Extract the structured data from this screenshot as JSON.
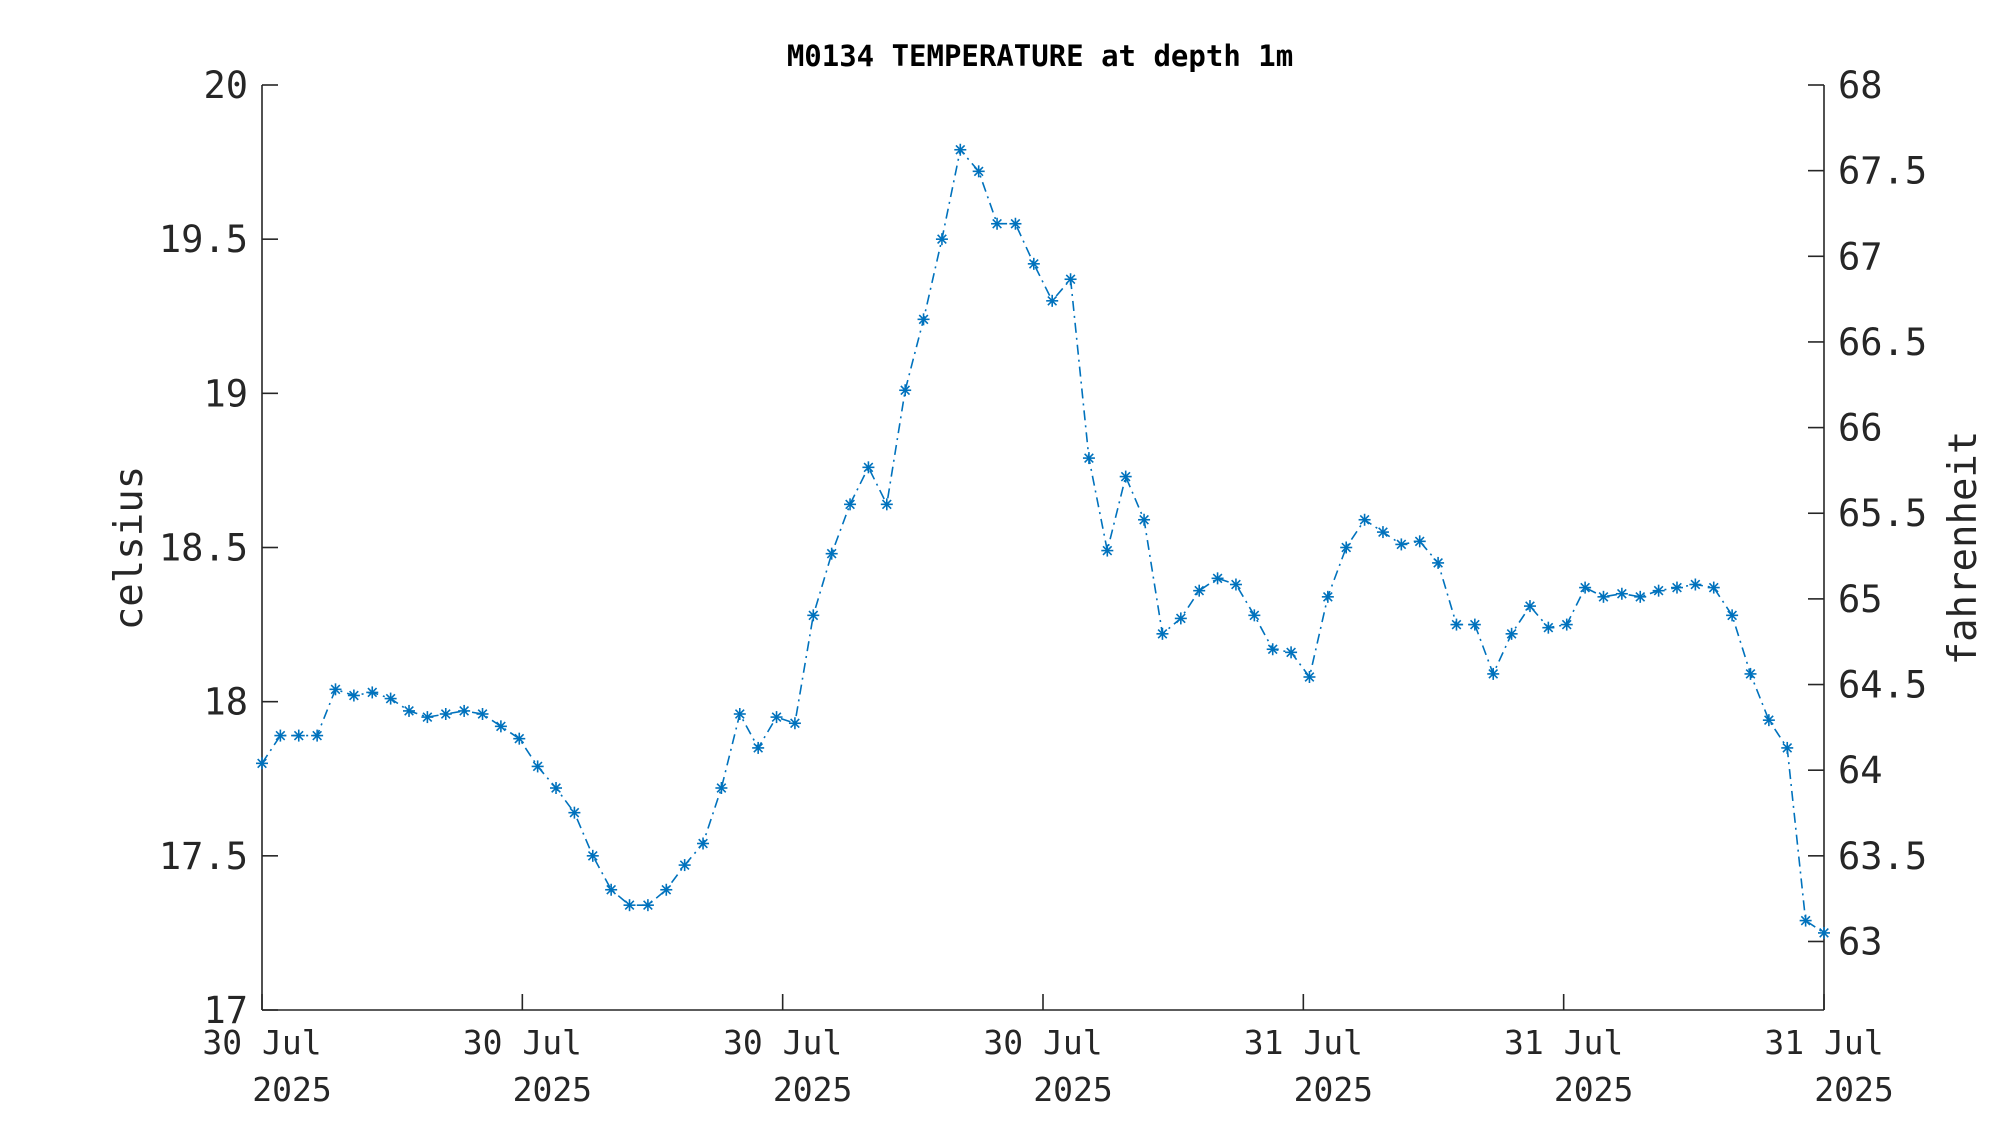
{
  "chart_data": {
    "type": "line",
    "title": "M0134 TEMPERATURE at depth 1m",
    "ylabel": "celsius",
    "y2label": "fahrenheit",
    "xlabel": "",
    "ylim": [
      17,
      20
    ],
    "y2lim": [
      62.6,
      68
    ],
    "yticks": [
      17,
      17.5,
      18,
      18.5,
      19,
      19.5,
      20
    ],
    "ytick_labels": [
      "17",
      "17.5",
      "18",
      "18.5",
      "19",
      "19.5",
      "20"
    ],
    "y2ticks": [
      63,
      63.5,
      64,
      64.5,
      65,
      65.5,
      66,
      66.5,
      67,
      67.5,
      68
    ],
    "y2tick_labels": [
      "63",
      "63.5",
      "64",
      "64.5",
      "65",
      "65.5",
      "66",
      "66.5",
      "67",
      "67.5",
      "68"
    ],
    "xtick_labels": [
      [
        "30 Jul",
        "2025"
      ],
      [
        "30 Jul",
        "2025"
      ],
      [
        "30 Jul",
        "2025"
      ],
      [
        "30 Jul",
        "2025"
      ],
      [
        "31 Jul",
        "2025"
      ],
      [
        "31 Jul",
        "2025"
      ],
      [
        "31 Jul",
        "2025"
      ]
    ],
    "grid": false,
    "line_style": "dash-dot",
    "marker": "asterisk",
    "series_color": "#0072BD",
    "series": [
      {
        "values": [
          17.8,
          17.89,
          17.89,
          17.89,
          18.04,
          18.02,
          18.03,
          18.01,
          17.97,
          17.95,
          17.96,
          17.97,
          17.96,
          17.92,
          17.88,
          17.79,
          17.72,
          17.64,
          17.5,
          17.39,
          17.34,
          17.34,
          17.39,
          17.47,
          17.54,
          17.72,
          17.96,
          17.85,
          17.95,
          17.93,
          18.28,
          18.48,
          18.64,
          18.76,
          18.64,
          19.01,
          19.24,
          19.5,
          19.79,
          19.72,
          19.55,
          19.55,
          19.42,
          19.3,
          19.37,
          18.79,
          18.49,
          18.73,
          18.59,
          18.22,
          18.27,
          18.36,
          18.4,
          18.38,
          18.28,
          18.17,
          18.16,
          18.08,
          18.34,
          18.5,
          18.59,
          18.55,
          18.51,
          18.52,
          18.45,
          18.25,
          18.25,
          18.09,
          18.22,
          18.31,
          18.24,
          18.25,
          18.37,
          18.34,
          18.35,
          18.34,
          18.36,
          18.37,
          18.38,
          18.37,
          18.28,
          18.09,
          17.94,
          17.85,
          17.29,
          17.25
        ]
      }
    ]
  }
}
